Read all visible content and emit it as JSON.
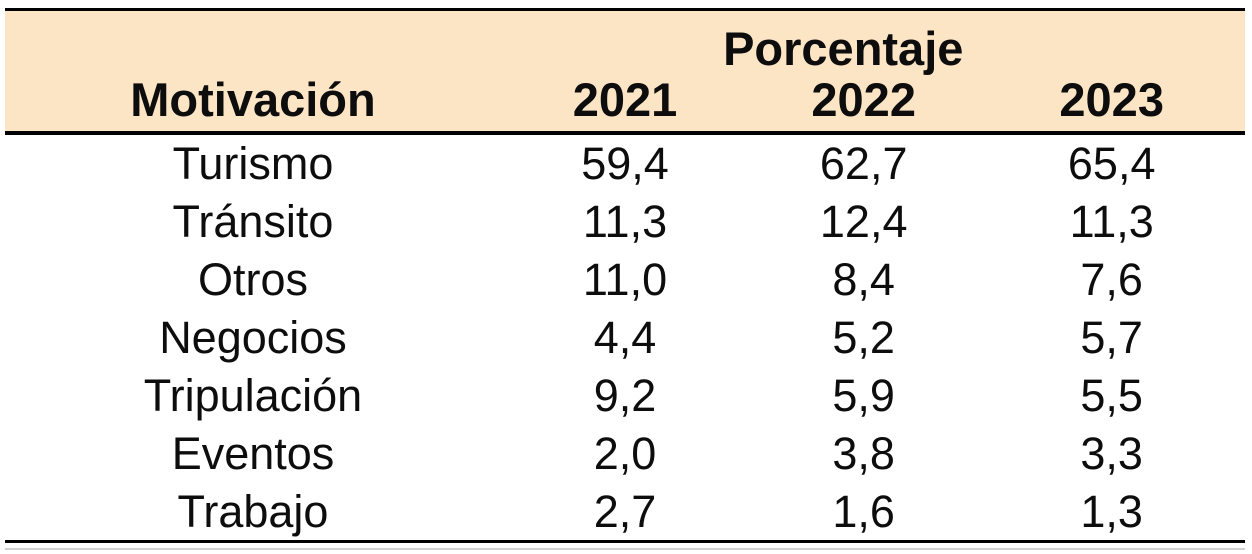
{
  "chart_data": {
    "type": "table",
    "group_header": "Porcentaje",
    "row_header": "Motivación",
    "columns": [
      "2021",
      "2022",
      "2023"
    ],
    "rows": [
      {
        "label": "Turismo",
        "values": [
          59.4,
          62.7,
          65.4
        ],
        "display": [
          "59,4",
          "62,7",
          "65,4"
        ]
      },
      {
        "label": "Tránsito",
        "values": [
          11.3,
          12.4,
          11.3
        ],
        "display": [
          "11,3",
          "12,4",
          "11,3"
        ]
      },
      {
        "label": "Otros",
        "values": [
          11.0,
          8.4,
          7.6
        ],
        "display": [
          "11,0",
          "8,4",
          "7,6"
        ]
      },
      {
        "label": "Negocios",
        "values": [
          4.4,
          5.2,
          5.7
        ],
        "display": [
          "4,4",
          "5,2",
          "5,7"
        ]
      },
      {
        "label": "Tripulación",
        "values": [
          9.2,
          5.9,
          5.5
        ],
        "display": [
          "9,2",
          "5,9",
          "5,5"
        ]
      },
      {
        "label": "Eventos",
        "values": [
          2.0,
          3.8,
          3.3
        ],
        "display": [
          "2,0",
          "3,8",
          "3,3"
        ]
      },
      {
        "label": "Trabajo",
        "values": [
          2.7,
          1.6,
          1.3
        ],
        "display": [
          "2,7",
          "1,6",
          "1,3"
        ]
      }
    ],
    "decimal_separator": ",",
    "layout": {
      "grid": "off",
      "rules": [
        "top",
        "below-header",
        "bottom"
      ],
      "value_alignment": "center"
    }
  },
  "colors": {
    "header_bg": "#fce5c5",
    "text": "#0d0d0d",
    "rule": "#000000",
    "faint_rule": "#bdbdbd"
  }
}
